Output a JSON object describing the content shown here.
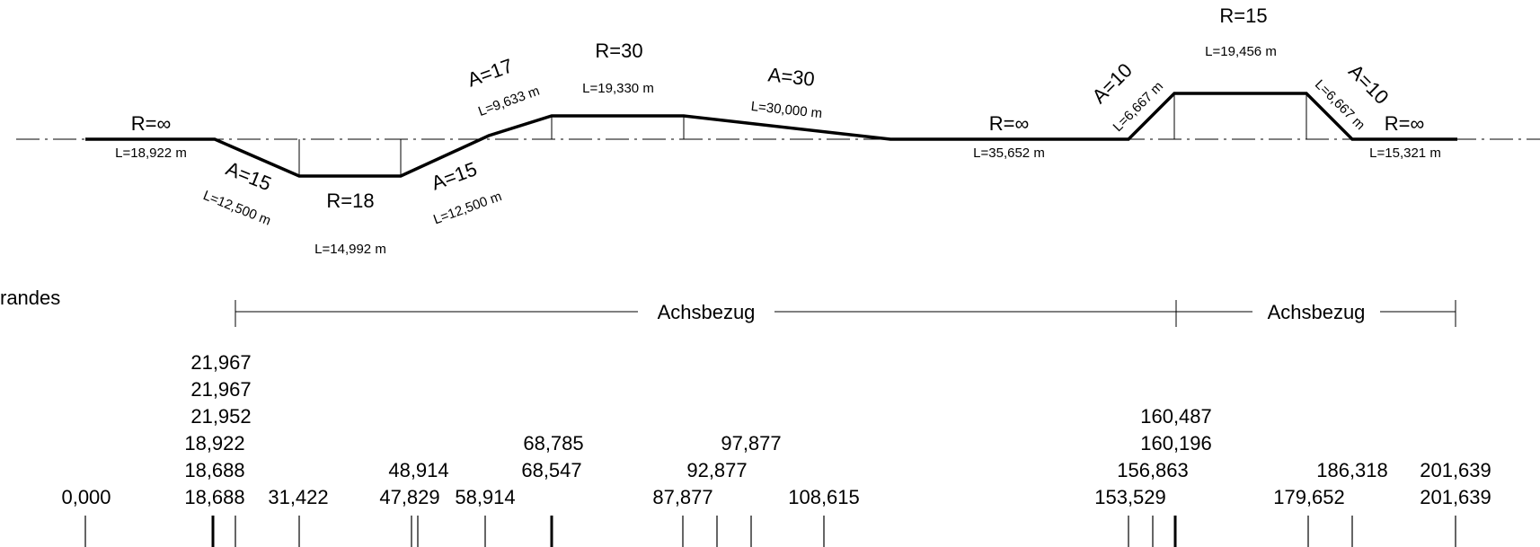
{
  "curvature_band": {
    "segments": [
      {
        "id": "s1",
        "label": "R=∞",
        "length": "L=18,922 m"
      },
      {
        "id": "s2",
        "label": "A=15",
        "length": "L=12,500 m"
      },
      {
        "id": "s3",
        "label": "R=18",
        "length": "L=14,992 m"
      },
      {
        "id": "s4",
        "label": "A=15",
        "length": "L=12,500 m"
      },
      {
        "id": "s5",
        "label": "A=17",
        "length": "L=9,633 m"
      },
      {
        "id": "s6",
        "label": "R=30",
        "length": "L=19,330 m"
      },
      {
        "id": "s7",
        "label": "A=30",
        "length": "L=30,000 m"
      },
      {
        "id": "s8",
        "label": "R=∞",
        "length": "L=35,652 m"
      },
      {
        "id": "s9",
        "label": "A=10",
        "length": "L=6,667 m"
      },
      {
        "id": "s10",
        "label": "R=15",
        "length": "L=19,456 m"
      },
      {
        "id": "s11",
        "label": "A=10",
        "length": "L=6,667 m"
      },
      {
        "id": "s12",
        "label": "R=∞",
        "length": "L=15,321 m"
      }
    ]
  },
  "edge_band": {
    "title_fragment": "randes",
    "references": [
      {
        "label": "Achsbezug"
      },
      {
        "label": "Achsbezug"
      }
    ]
  },
  "stations": {
    "columns": [
      {
        "id": "c1",
        "values": [
          "0,000"
        ]
      },
      {
        "id": "c2",
        "values": [
          "21,967",
          "21,967",
          "21,952",
          "18,922",
          "18,688",
          "18,688"
        ]
      },
      {
        "id": "c3",
        "values": [
          "31,422"
        ]
      },
      {
        "id": "c4",
        "values": [
          "48,914",
          "47,829"
        ]
      },
      {
        "id": "c5",
        "values": [
          "58,914"
        ]
      },
      {
        "id": "c6",
        "values": [
          "68,785",
          "68,547"
        ]
      },
      {
        "id": "c7",
        "values": [
          "97,877",
          "92,877",
          "87,877"
        ]
      },
      {
        "id": "c8",
        "values": [
          "108,615"
        ]
      },
      {
        "id": "c9",
        "values": [
          "160,487",
          "160,196",
          "156,863",
          "153,529"
        ]
      },
      {
        "id": "c10",
        "values": [
          "179,652"
        ]
      },
      {
        "id": "c11",
        "values": [
          "186,318"
        ]
      },
      {
        "id": "c12",
        "values": [
          "201,639",
          "201,639"
        ]
      }
    ]
  }
}
